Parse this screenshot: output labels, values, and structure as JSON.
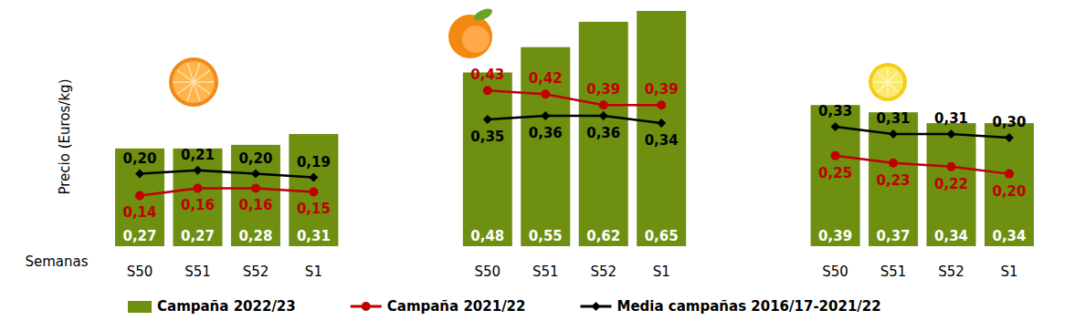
{
  "chart_data": {
    "type": "bar",
    "y_label": "Precio (Euros/kg)",
    "x_label": "Semanas",
    "categories": [
      "S50",
      "S51",
      "S52",
      "S1",
      null,
      null,
      "S50",
      "S51",
      "S52",
      "S1",
      null,
      null,
      "S50",
      "S51",
      "S52",
      "S1"
    ],
    "ylim": [
      0,
      0.65
    ],
    "tick_labels": "x",
    "data_labels": true,
    "legend": "bottom",
    "series": [
      {
        "name": "Campaña 2022/23",
        "type": "bar",
        "color": "#6e8f10",
        "values": [
          0.27,
          0.27,
          0.28,
          0.31,
          null,
          null,
          0.48,
          0.55,
          0.62,
          0.65,
          null,
          null,
          0.39,
          0.37,
          0.34,
          0.34
        ],
        "value_labels": [
          "0,27",
          "0,27",
          "0,28",
          "0,31",
          null,
          null,
          "0,48",
          "0,55",
          "0,62",
          "0,65",
          null,
          null,
          "0,39",
          "0,37",
          "0,34",
          "0,34"
        ]
      },
      {
        "name": "Campaña 2021/22",
        "type": "line",
        "color": "#c00000",
        "marker": "circle",
        "values": [
          0.14,
          0.16,
          0.16,
          0.15,
          null,
          null,
          0.43,
          0.42,
          0.39,
          0.39,
          null,
          null,
          0.25,
          0.23,
          0.22,
          0.2
        ],
        "value_labels": [
          "0,14",
          "0,16",
          "0,16",
          "0,15",
          null,
          null,
          "0,43",
          "0,42",
          "0,39",
          "0,39",
          null,
          null,
          "0,25",
          "0,23",
          "0,22",
          "0,20"
        ]
      },
      {
        "name": "Media campañas 2016/17-2021/22",
        "type": "line",
        "color": "#000000",
        "marker": "diamond",
        "values": [
          0.2,
          0.21,
          0.2,
          0.19,
          null,
          null,
          0.35,
          0.36,
          0.36,
          0.34,
          null,
          null,
          0.33,
          0.31,
          0.31,
          0.3
        ],
        "value_labels": [
          "0,20",
          "0,21",
          "0,20",
          "0,19",
          null,
          null,
          "0,35",
          "0,36",
          "0,36",
          "0,34",
          null,
          null,
          "0,33",
          "0,31",
          "0,31",
          "0,30"
        ]
      }
    ]
  }
}
